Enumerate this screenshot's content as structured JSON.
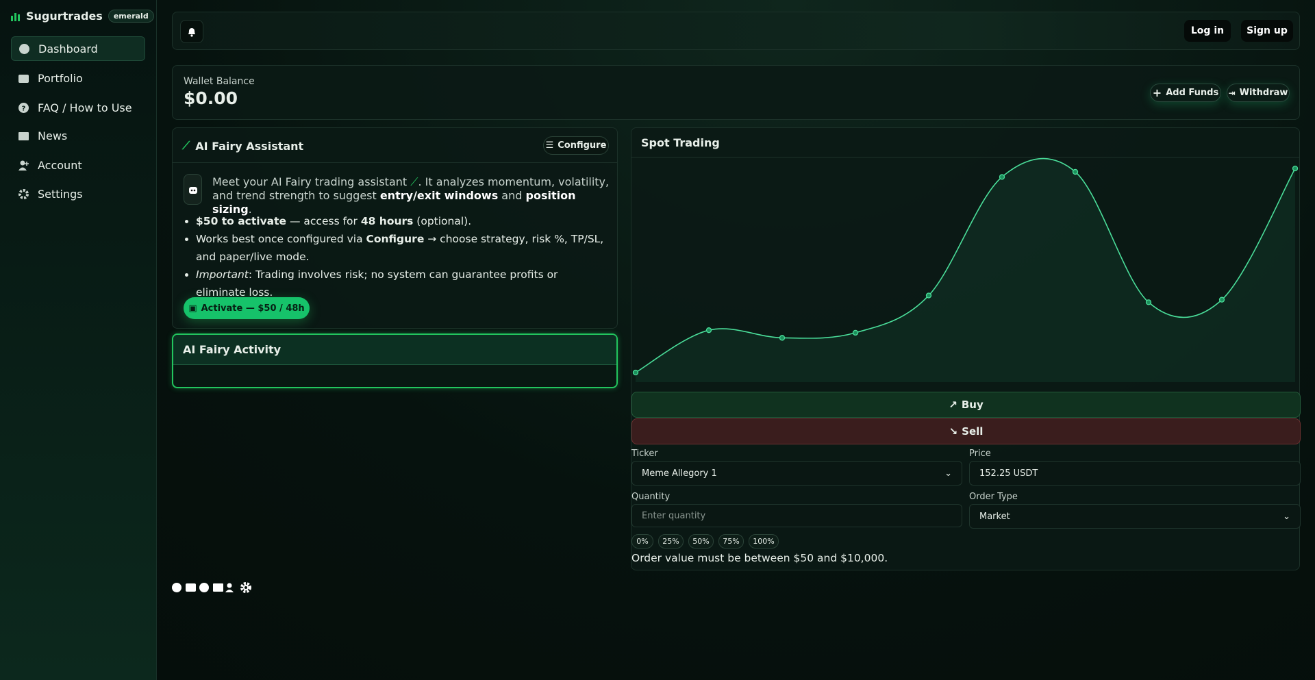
{
  "sidebar": {
    "brand": "Sugurtrades",
    "badge": "emerald",
    "nav": [
      "Dashboard",
      "Portfolio",
      "FAQ / How to Use",
      "News",
      "Account",
      "Settings"
    ]
  },
  "topbar": {
    "login": "Log in",
    "signup": "Sign up"
  },
  "wallet": {
    "label": "Wallet Balance",
    "balance": "$0.00",
    "add_funds": "Add Funds",
    "withdraw": "Withdraw"
  },
  "assistant": {
    "title": "AI Fairy Assistant",
    "configure": "Configure",
    "intro": [
      "Meet your AI Fairy trading assistant",
      ". It analyzes momentum, volatility, and trend strength to suggest ",
      "entry/exit windows",
      " and ",
      "position sizing",
      "."
    ],
    "bullets": [
      [
        "$50 to activate",
        " — access for ",
        "48 hours",
        " (optional)."
      ],
      [
        "Works best once configured via ",
        "Configure",
        " → choose strategy, risk %, TP/SL, and paper/live mode."
      ],
      [
        "Important",
        ": Trading involves risk; no system can guarantee profits or eliminate loss."
      ]
    ],
    "activate": "Activate — $50 / 48h"
  },
  "activity": {
    "title": "AI Fairy Activity"
  },
  "spot": {
    "title": "Spot Trading",
    "chart": {
      "type": "line",
      "values": [
        11,
        61,
        52,
        58,
        102,
        242,
        248,
        94,
        97,
        252
      ]
    },
    "buy": "Buy",
    "sell": "Sell",
    "ticker_label": "Ticker",
    "ticker": "Meme Allegory 1",
    "price_label": "Price",
    "price": "152.25 USDT",
    "quantity_label": "Quantity",
    "quantity_placeholder": "Enter quantity",
    "order_type_label": "Order Type",
    "order_type": "Market",
    "percents": [
      "0%",
      "25%",
      "50%",
      "75%",
      "100%"
    ],
    "message": "Order value must be between $50 and $10,000."
  }
}
